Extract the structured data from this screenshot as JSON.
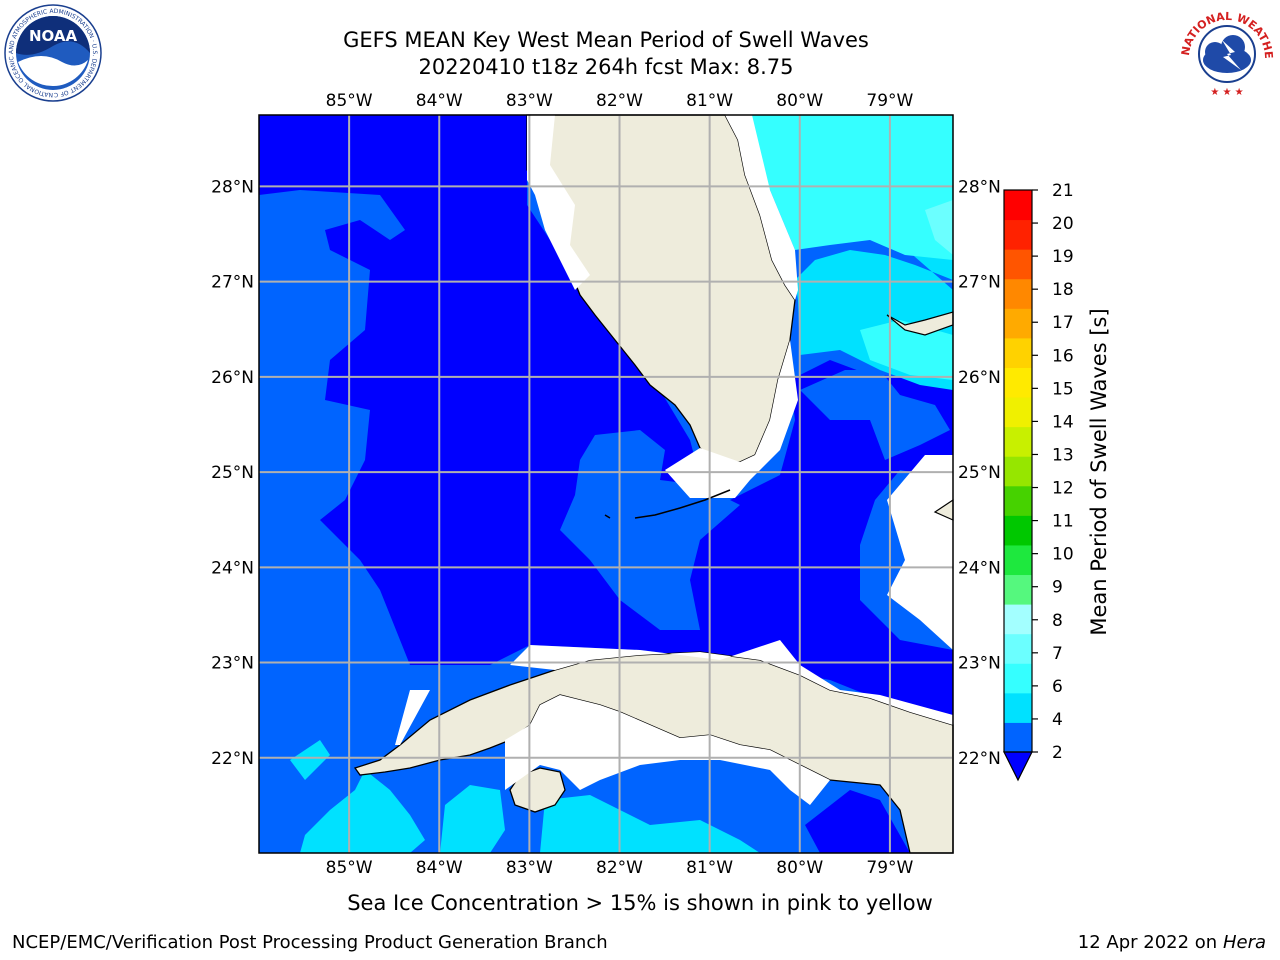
{
  "title_line1": "GEFS MEAN Key West Mean Period of Swell Waves",
  "title_line2": "20220410 t18z 264h fcst   Max: 8.75",
  "map": {
    "lon_labels": [
      "85°W",
      "84°W",
      "83°W",
      "82°W",
      "81°W",
      "80°W",
      "79°W"
    ],
    "lon_values": [
      -85,
      -84,
      -83,
      -82,
      -81,
      -80,
      -79
    ],
    "lat_labels": [
      "28°N",
      "27°N",
      "26°N",
      "25°N",
      "24°N",
      "23°N",
      "22°N"
    ],
    "lat_values": [
      28,
      27,
      26,
      25,
      24,
      23,
      22
    ],
    "lon_range": [
      -86.0,
      -78.3
    ],
    "lat_range": [
      21.0,
      28.75
    ],
    "land_color": "#eeecdc",
    "masked_color": "#ffffff",
    "grid_color": "#b0b0b0"
  },
  "colorbar": {
    "label": "Mean Period of Swell Waves [s]",
    "ticks": [
      "2",
      "4",
      "6",
      "7",
      "8",
      "9",
      "10",
      "11",
      "12",
      "13",
      "14",
      "15",
      "16",
      "17",
      "18",
      "19",
      "20",
      "21"
    ],
    "colors": [
      "#0064ff",
      "#00e1ff",
      "#35ffff",
      "#6bffff",
      "#a3ffff",
      "#55f87e",
      "#1ee83e",
      "#00c800",
      "#46d200",
      "#96e600",
      "#c8f000",
      "#f0f000",
      "#ffea00",
      "#ffd200",
      "#ffaa00",
      "#ff8800",
      "#ff5500",
      "#ff2200",
      "#ff0000"
    ],
    "extend_color": "#0000ff"
  },
  "logos": {
    "left": "NOAA",
    "right_ring": "NATIONAL WEATHER SERVICE"
  },
  "footnote": "Sea Ice Concentration > 15% is shown in pink to yellow",
  "credit_left": "NCEP/EMC/Verification Post Processing Product Generation Branch",
  "credit_date": "12 Apr 2022 on",
  "credit_host": "Hera"
}
